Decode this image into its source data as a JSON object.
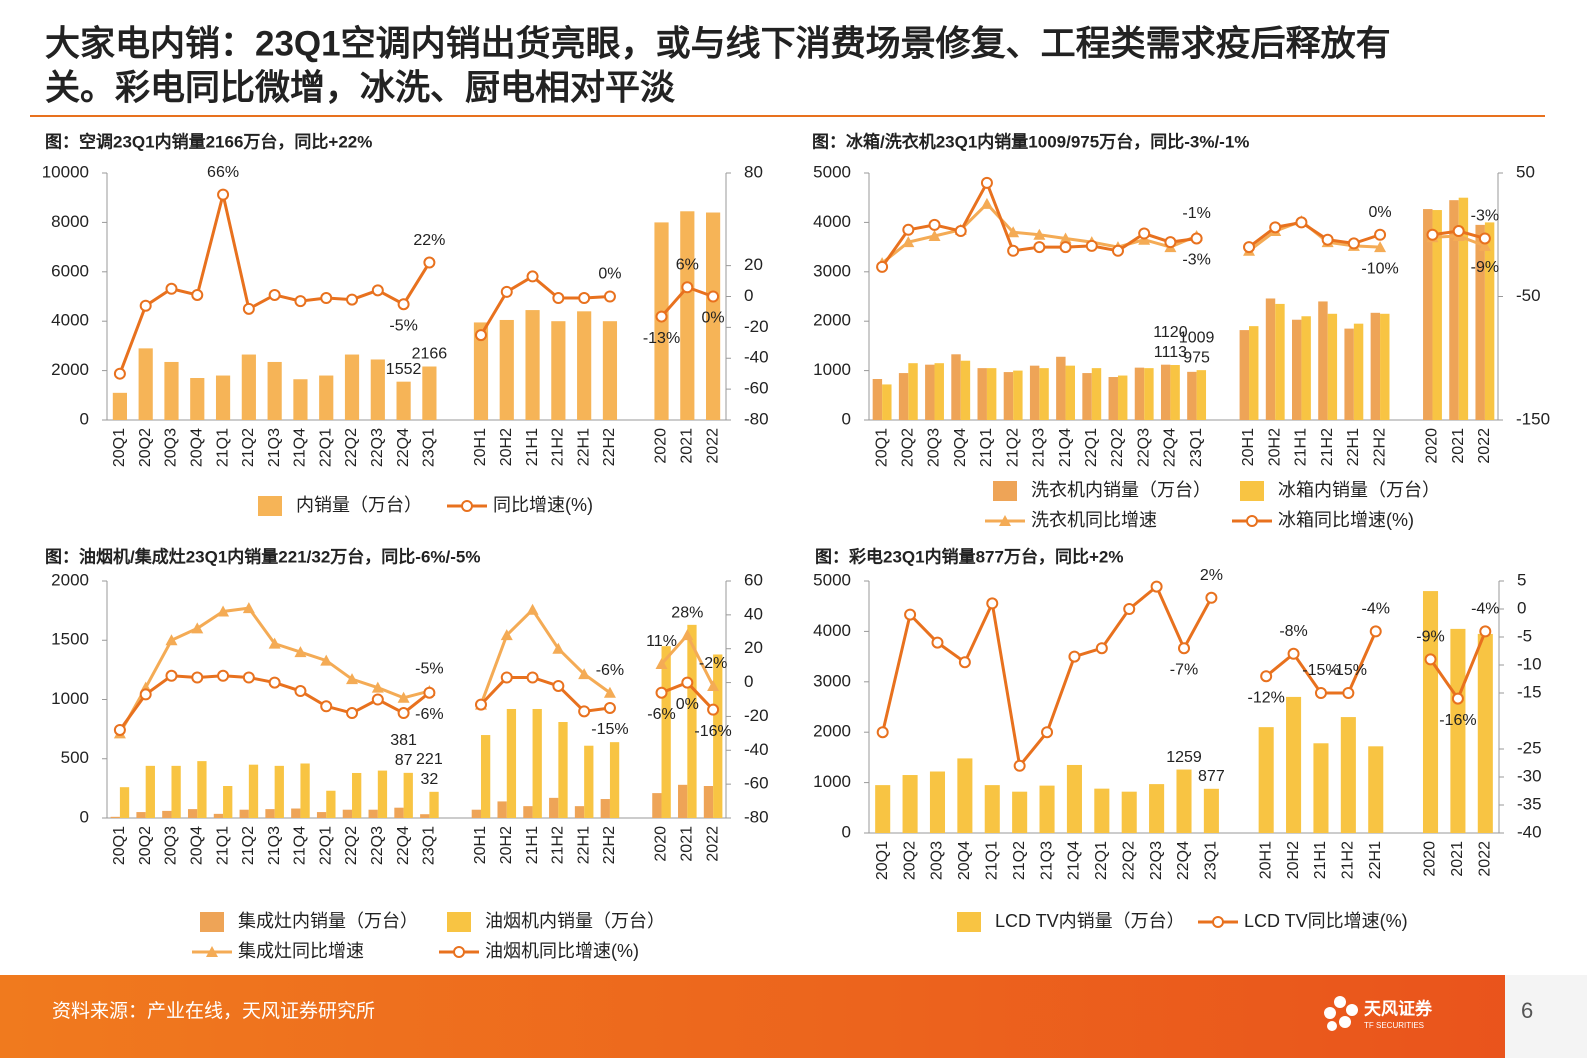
{
  "header": {
    "title_lines": [
      "大家电内销：23Q1空调内销出货亮眼，或与线下消费场景修复、工程类需求疫后释放有",
      "关。彩电同比微增，冰洗、厨电相对平淡"
    ]
  },
  "chart_data": [
    {
      "type": "combo",
      "title": "图：空调23Q1内销量2166万台，同比+22%",
      "categories": [
        "20Q1",
        "20Q2",
        "20Q3",
        "20Q4",
        "21Q1",
        "21Q2",
        "21Q3",
        "21Q4",
        "22Q1",
        "22Q2",
        "22Q3",
        "22Q4",
        "23Q1",
        null,
        "20H1",
        "20H2",
        "21H1",
        "21H2",
        "22H1",
        "22H2",
        null,
        "2020",
        "2021",
        "2022"
      ],
      "ylim": [
        0,
        10000
      ],
      "yticks": [
        0,
        2000,
        4000,
        6000,
        8000,
        10000
      ],
      "y2lim": [
        -80,
        80
      ],
      "y2ticks": [
        -80,
        -60,
        -40,
        -20,
        0,
        20,
        80
      ],
      "series": [
        {
          "name": "内销量（万台）",
          "kind": "bar",
          "color": "#f6b457",
          "values": [
            1100,
            2900,
            2350,
            1700,
            1800,
            2650,
            2350,
            1650,
            1800,
            2650,
            2450,
            1552,
            2166,
            null,
            3950,
            4050,
            4450,
            4000,
            4400,
            4000,
            null,
            8000,
            8450,
            8400
          ],
          "value_labels": [
            null,
            null,
            null,
            null,
            null,
            null,
            null,
            null,
            null,
            null,
            null,
            "1552",
            "2166",
            null,
            null,
            null,
            null,
            null,
            null,
            null,
            null,
            null,
            null,
            null
          ]
        },
        {
          "name": "同比增速(%)",
          "kind": "line",
          "marker": "circle",
          "axis": "y2",
          "color": "#e8711e",
          "values": [
            -50,
            -6,
            5,
            1,
            66,
            -8,
            1,
            -3,
            -1,
            -2,
            4,
            -5,
            22,
            null,
            -25,
            3,
            13,
            -1,
            -1,
            0,
            null,
            -13,
            6,
            0
          ],
          "value_labels": [
            null,
            null,
            null,
            null,
            "66%",
            null,
            null,
            null,
            null,
            null,
            null,
            "-5%",
            "22%",
            null,
            null,
            null,
            null,
            null,
            null,
            "0%",
            null,
            "-13%",
            "6%",
            "0%"
          ]
        }
      ]
    },
    {
      "type": "combo",
      "title": "图：冰箱/洗衣机23Q1内销量1009/975万台，同比-3%/-1%",
      "categories": [
        "20Q1",
        "20Q2",
        "20Q3",
        "20Q4",
        "21Q1",
        "21Q2",
        "21Q3",
        "21Q4",
        "22Q1",
        "22Q2",
        "22Q3",
        "22Q4",
        "23Q1",
        null,
        "20H1",
        "20H2",
        "21H1",
        "21H2",
        "22H1",
        "22H2",
        null,
        "2020",
        "2021",
        "2022"
      ],
      "ylim": [
        0,
        5000
      ],
      "yticks": [
        0,
        1000,
        2000,
        3000,
        4000,
        5000
      ],
      "y2lim": [
        -150,
        50
      ],
      "y2ticks": [
        -150,
        -50,
        50
      ],
      "series": [
        {
          "name": "洗衣机内销量（万台）",
          "kind": "bar",
          "color": "#eea457",
          "values": [
            830,
            950,
            1120,
            1330,
            1050,
            970,
            1100,
            1280,
            950,
            870,
            1060,
            1120,
            975,
            null,
            1820,
            2460,
            2030,
            2400,
            1850,
            2170,
            null,
            4270,
            4450,
            3950
          ],
          "value_labels": [
            null,
            null,
            null,
            null,
            null,
            null,
            null,
            null,
            null,
            null,
            null,
            "1120",
            "975",
            null,
            null,
            null,
            null,
            null,
            null,
            null,
            null,
            null,
            null,
            null
          ]
        },
        {
          "name": "冰箱内销量（万台）",
          "kind": "bar",
          "color": "#f8c443",
          "values": [
            720,
            1150,
            1150,
            1200,
            1050,
            1000,
            1050,
            1100,
            1050,
            900,
            1050,
            1113,
            1009,
            null,
            1900,
            2350,
            2100,
            2150,
            1950,
            2150,
            null,
            4250,
            4500,
            4000
          ],
          "value_labels": [
            null,
            null,
            null,
            null,
            null,
            null,
            null,
            null,
            null,
            null,
            null,
            "1113",
            "1009",
            null,
            null,
            null,
            null,
            null,
            null,
            null,
            null,
            null,
            null,
            null
          ]
        },
        {
          "name": "洗衣机同比增速",
          "kind": "line",
          "marker": "triangle",
          "axis": "y2",
          "color": "#f4ab55",
          "values": [
            -23,
            -6,
            -1,
            4,
            25,
            2,
            0,
            -3,
            -6,
            -10,
            -4,
            -10,
            -1,
            null,
            -13,
            3,
            11,
            -6,
            -9,
            -10,
            null,
            -2,
            -1,
            -9
          ],
          "value_labels": [
            null,
            null,
            null,
            null,
            null,
            null,
            null,
            null,
            null,
            null,
            null,
            null,
            "-1%",
            null,
            null,
            null,
            null,
            null,
            null,
            "-10%",
            null,
            null,
            null,
            "-9%"
          ]
        },
        {
          "name": "冰箱同比增速(%)",
          "kind": "line",
          "marker": "circle",
          "axis": "y2",
          "color": "#e8711e",
          "values": [
            -26,
            4,
            8,
            3,
            42,
            -13,
            -10,
            -10,
            -9,
            -13,
            1,
            -6,
            -3,
            null,
            -10,
            6,
            10,
            -4,
            -7,
            0,
            null,
            0,
            3,
            -3
          ],
          "value_labels": [
            null,
            null,
            null,
            null,
            null,
            null,
            null,
            null,
            null,
            null,
            null,
            null,
            "-3%",
            null,
            null,
            null,
            null,
            null,
            null,
            "0%",
            null,
            null,
            null,
            "-3%"
          ]
        }
      ]
    },
    {
      "type": "combo",
      "title": "图：油烟机/集成灶23Q1内销量221/32万台，同比-6%/-5%",
      "categories": [
        "20Q1",
        "20Q2",
        "20Q3",
        "20Q4",
        "21Q1",
        "21Q2",
        "21Q3",
        "21Q4",
        "22Q1",
        "22Q2",
        "22Q3",
        "22Q4",
        "23Q1",
        null,
        "20H1",
        "20H2",
        "21H1",
        "21H2",
        "22H1",
        "22H2",
        null,
        "2020",
        "2021",
        "2022"
      ],
      "ylim": [
        0,
        2000
      ],
      "yticks": [
        0,
        500,
        1000,
        1500,
        2000
      ],
      "y2lim": [
        -80,
        60
      ],
      "y2ticks": [
        -80,
        -60,
        -40,
        -20,
        0,
        20,
        40,
        60
      ],
      "series": [
        {
          "name": "集成灶内销量（万台）",
          "kind": "bar",
          "color": "#eea457",
          "values": [
            10,
            50,
            60,
            75,
            35,
            70,
            75,
            80,
            50,
            70,
            70,
            87,
            32,
            null,
            70,
            140,
            100,
            170,
            100,
            160,
            null,
            210,
            280,
            270
          ],
          "value_labels": [
            null,
            null,
            null,
            null,
            null,
            null,
            null,
            null,
            null,
            null,
            null,
            "87",
            "32",
            null,
            null,
            null,
            null,
            null,
            null,
            null,
            null,
            null,
            null,
            null
          ]
        },
        {
          "name": "油烟机内销量（万台）",
          "kind": "bar",
          "color": "#f8c443",
          "values": [
            260,
            440,
            440,
            480,
            270,
            450,
            440,
            460,
            230,
            380,
            400,
            381,
            221,
            null,
            700,
            920,
            920,
            810,
            610,
            640,
            null,
            1450,
            1630,
            1380
          ],
          "value_labels": [
            null,
            null,
            null,
            null,
            null,
            null,
            null,
            null,
            null,
            null,
            null,
            "381",
            "221",
            null,
            null,
            null,
            null,
            null,
            null,
            null,
            null,
            null,
            null,
            null
          ]
        },
        {
          "name": "集成灶同比增速",
          "kind": "line",
          "marker": "triangle",
          "axis": "y2",
          "color": "#f4ab55",
          "values": [
            -30,
            -3,
            25,
            32,
            42,
            44,
            23,
            18,
            13,
            2,
            -3,
            -9,
            -5,
            null,
            -13,
            28,
            43,
            20,
            5,
            -6,
            null,
            11,
            28,
            -2
          ],
          "value_labels": [
            null,
            null,
            null,
            null,
            null,
            null,
            null,
            null,
            null,
            null,
            null,
            null,
            "-5%",
            null,
            null,
            null,
            null,
            null,
            null,
            "-6%",
            null,
            "11%",
            "28%",
            "-2%"
          ]
        },
        {
          "name": "油烟机同比增速(%)",
          "kind": "line",
          "marker": "circle",
          "axis": "y2",
          "color": "#e8711e",
          "values": [
            -28,
            -7,
            4,
            3,
            4,
            3,
            0,
            -5,
            -14,
            -18,
            -10,
            -18,
            -6,
            null,
            -13,
            3,
            3,
            -2,
            -17,
            -15,
            null,
            -6,
            0,
            -16
          ],
          "value_labels": [
            null,
            null,
            null,
            null,
            null,
            null,
            null,
            null,
            null,
            null,
            null,
            null,
            "-6%",
            null,
            null,
            null,
            null,
            null,
            null,
            "-15%",
            null,
            "-6%",
            "0%",
            "-16%"
          ]
        }
      ]
    },
    {
      "type": "combo",
      "title": "图：彩电23Q1内销量877万台，同比+2%",
      "categories": [
        "20Q1",
        "20Q2",
        "20Q3",
        "20Q4",
        "21Q1",
        "21Q2",
        "21Q3",
        "21Q4",
        "22Q1",
        "22Q2",
        "22Q3",
        "22Q4",
        "23Q1",
        null,
        "20H1",
        "20H2",
        "21H1",
        "21H2",
        "22H1",
        null,
        "2020",
        "2021",
        "2022"
      ],
      "ylim": [
        0,
        5000
      ],
      "yticks": [
        0,
        1000,
        2000,
        3000,
        4000,
        5000
      ],
      "y2lim": [
        -40,
        5
      ],
      "y2ticks": [
        -40,
        -35,
        -30,
        -25,
        -15,
        -10,
        -5,
        0,
        5
      ],
      "series": [
        {
          "name": "LCD TV内销量（万台）",
          "kind": "bar",
          "color": "#f8c443",
          "values": [
            950,
            1150,
            1220,
            1480,
            950,
            820,
            940,
            1350,
            880,
            820,
            970,
            1259,
            877,
            null,
            2100,
            2700,
            1780,
            2300,
            1720,
            null,
            4800,
            4050,
            3950
          ],
          "value_labels": [
            null,
            null,
            null,
            null,
            null,
            null,
            null,
            null,
            null,
            null,
            null,
            "1259",
            "877",
            null,
            null,
            null,
            null,
            null,
            null,
            null,
            null,
            null,
            null
          ]
        },
        {
          "name": "LCD TV同比增速(%)",
          "kind": "line",
          "marker": "circle",
          "axis": "y2",
          "color": "#e8711e",
          "values": [
            -22,
            -1,
            -6,
            -9.5,
            1,
            -28,
            -22,
            -8.5,
            -7,
            0,
            4,
            -7,
            2,
            null,
            -12,
            -8,
            -15,
            -15,
            -4,
            null,
            -9,
            -16,
            -4
          ],
          "value_labels": [
            null,
            null,
            null,
            null,
            null,
            null,
            null,
            null,
            null,
            null,
            null,
            "-7%",
            "2%",
            null,
            "-12%",
            "-8%",
            "-15%",
            "-15%",
            "-4%",
            null,
            "-9%",
            "-16%",
            "-4%"
          ]
        }
      ]
    }
  ],
  "footer": {
    "source": "资料来源：产业在线，天风证券研究所",
    "logo_name": "天风证券",
    "logo_en": "TF SECURITIES",
    "page": "6"
  }
}
